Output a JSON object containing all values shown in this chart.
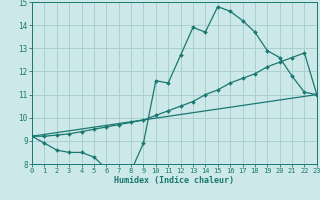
{
  "xlabel": "Humidex (Indice chaleur)",
  "bg_color": "#cde8e8",
  "line_color": "#1a7872",
  "grid_color": "#aad0d0",
  "xmin": 0,
  "xmax": 23,
  "ymin": 8,
  "ymax": 15,
  "line1_x": [
    0,
    1,
    2,
    3,
    4,
    5,
    6,
    7,
    8,
    9,
    10,
    11,
    12,
    13,
    14,
    15,
    16,
    17,
    18,
    19,
    20,
    21,
    22,
    23
  ],
  "line1_y": [
    9.2,
    8.9,
    8.6,
    8.5,
    8.5,
    8.3,
    7.8,
    7.7,
    7.7,
    8.9,
    11.6,
    11.5,
    12.7,
    13.9,
    13.7,
    14.8,
    14.6,
    14.2,
    13.7,
    12.9,
    12.6,
    11.8,
    11.1,
    11.0
  ],
  "line2_x": [
    0,
    1,
    2,
    3,
    4,
    5,
    6,
    7,
    8,
    9,
    10,
    11,
    12,
    13,
    14,
    15,
    16,
    17,
    18,
    19,
    20,
    21,
    22,
    23
  ],
  "line2_y": [
    9.2,
    9.2,
    9.25,
    9.3,
    9.4,
    9.5,
    9.6,
    9.7,
    9.8,
    9.9,
    10.1,
    10.3,
    10.5,
    10.7,
    11.0,
    11.2,
    11.5,
    11.7,
    11.9,
    12.2,
    12.4,
    12.6,
    12.8,
    11.0
  ],
  "line3_x": [
    0,
    23
  ],
  "line3_y": [
    9.2,
    11.0
  ],
  "yticks": [
    8,
    9,
    10,
    11,
    12,
    13,
    14,
    15
  ],
  "xticks": [
    0,
    1,
    2,
    3,
    4,
    5,
    6,
    7,
    8,
    9,
    10,
    11,
    12,
    13,
    14,
    15,
    16,
    17,
    18,
    19,
    20,
    21,
    22,
    23
  ]
}
